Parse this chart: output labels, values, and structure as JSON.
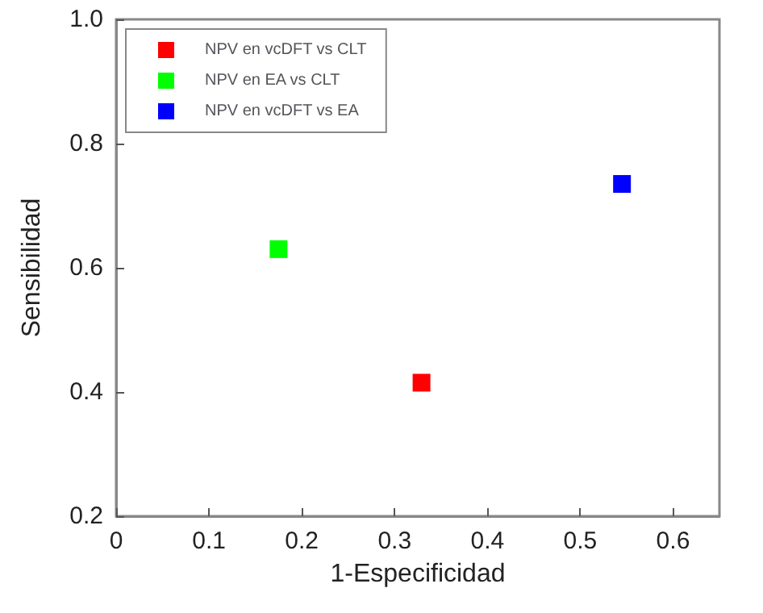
{
  "chart_data": {
    "type": "scatter",
    "xlabel": "1-Especificidad",
    "ylabel": "Sensibilidad",
    "xlim": [
      0,
      0.65
    ],
    "xticks": [
      0,
      0.1,
      0.2,
      0.3,
      0.4,
      0.5,
      0.6
    ],
    "ylim": [
      0.2,
      1.0
    ],
    "yticks": [
      0.2,
      0.4,
      0.6,
      0.8,
      {
        "value": 1.0,
        "label": "1.0"
      }
    ],
    "grid": false,
    "legend": "top left",
    "marker": "square",
    "series": [
      {
        "name": "NPV en vcDFT vs CLT",
        "color": "#ff0000",
        "x": [
          0.329
        ],
        "values": [
          0.415
        ]
      },
      {
        "name": "NPV en EA vs CLT",
        "color": "#00ff00",
        "x": [
          0.175
        ],
        "values": [
          0.63
        ]
      },
      {
        "name": "NPV en vcDFT vs EA",
        "color": "#0000ff",
        "x": [
          0.545
        ],
        "values": [
          0.735
        ]
      }
    ]
  }
}
